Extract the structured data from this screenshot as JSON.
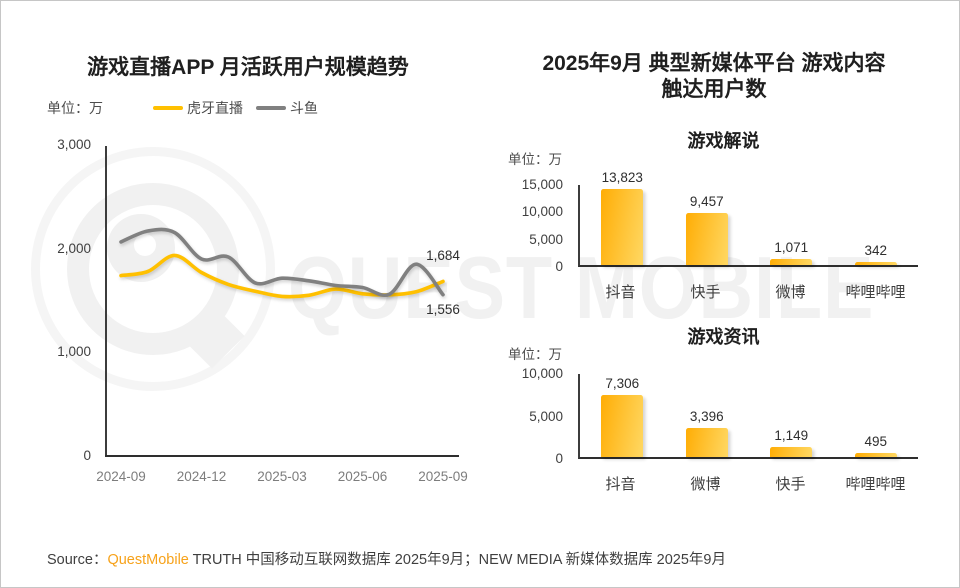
{
  "watermark": {
    "text": "QUEST MOBILE"
  },
  "right_panel": {
    "title_line1": "2025年9月 典型新媒体平台 游戏内容",
    "title_line2": "触达用户数"
  },
  "footer": {
    "source_label": "Source：",
    "brand": "QuestMobile",
    "brand_color": "#F7A21A",
    "text": " TRUTH 中国移动互联网数据库 2025年9月；NEW MEDIA 新媒体数据库 2025年9月"
  },
  "chart_data": [
    {
      "type": "line",
      "title": "游戏直播APP 月活跃用户规模趋势",
      "unit_label": "单位：万",
      "ylim": [
        0,
        3000
      ],
      "y_ticks": [
        "0",
        "1,000",
        "2,000",
        "3,000"
      ],
      "x_tick_labels": [
        "2024-09",
        "2024-12",
        "2025-03",
        "2025-06",
        "2025-09"
      ],
      "x_monthly": [
        "2024-09",
        "2024-10",
        "2024-11",
        "2024-12",
        "2025-01",
        "2025-02",
        "2025-03",
        "2025-04",
        "2025-05",
        "2025-06",
        "2025-07",
        "2025-08",
        "2025-09"
      ],
      "grid": false,
      "legend_position": "top",
      "series": [
        {
          "name": "虎牙直播",
          "color": "#FFC000",
          "end_label": "1,684",
          "values": [
            1740,
            1780,
            1935,
            1770,
            1655,
            1590,
            1540,
            1550,
            1610,
            1565,
            1555,
            1585,
            1684
          ]
        },
        {
          "name": "斗鱼",
          "color": "#808080",
          "end_label": "1,556",
          "values": [
            2065,
            2170,
            2155,
            1900,
            1920,
            1670,
            1715,
            1690,
            1645,
            1625,
            1560,
            1850,
            1556
          ]
        }
      ]
    },
    {
      "type": "bar",
      "title": "游戏解说",
      "unit_label": "单位：万",
      "ylim": [
        0,
        15000
      ],
      "y_ticks": [
        "0",
        "5,000",
        "10,000",
        "15,000"
      ],
      "categories": [
        "抖音",
        "快手",
        "微博",
        "哔哩哔哩"
      ],
      "values": [
        13823,
        9457,
        1071,
        342
      ],
      "value_labels": [
        "13,823",
        "9,457",
        "1,071",
        "342"
      ],
      "bar_color_start": "#FFAD05",
      "bar_color_end": "#FFD863"
    },
    {
      "type": "bar",
      "title": "游戏资讯",
      "unit_label": "单位：万",
      "ylim": [
        0,
        10000
      ],
      "y_ticks": [
        "0",
        "5,000",
        "10,000"
      ],
      "categories": [
        "抖音",
        "微博",
        "快手",
        "哔哩哔哩"
      ],
      "values": [
        7306,
        3396,
        1149,
        495
      ],
      "value_labels": [
        "7,306",
        "3,396",
        "1,149",
        "495"
      ],
      "bar_color_start": "#FFAD05",
      "bar_color_end": "#FFD863"
    }
  ]
}
